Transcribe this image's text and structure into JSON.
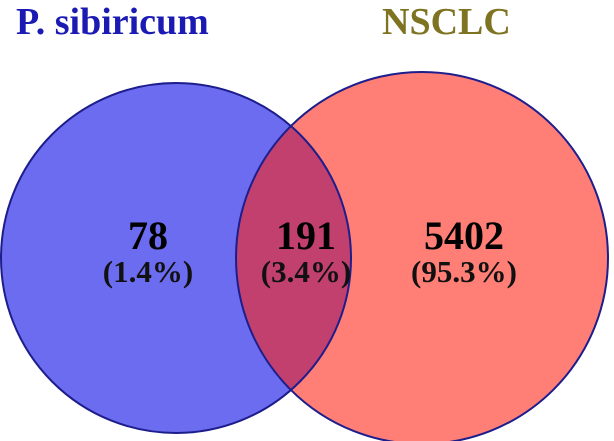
{
  "sets": [
    {
      "name": "P. sibiricum",
      "title_color": "#1b1bb4",
      "fill_color": "#6c6cf0",
      "stroke_color": "#1d1d8c"
    },
    {
      "name": "NSCLC",
      "title_color": "#7d7320",
      "fill_color": "#ff7f77",
      "stroke_color": "#1d1d8c"
    }
  ],
  "regions": {
    "left_only": {
      "count": "78",
      "percent": "(1.4%)"
    },
    "intersection": {
      "count": "191",
      "percent": "(3.4%)",
      "fill_color": "#c2406e"
    },
    "right_only": {
      "count": "5402",
      "percent": "(95.3%)"
    }
  }
}
